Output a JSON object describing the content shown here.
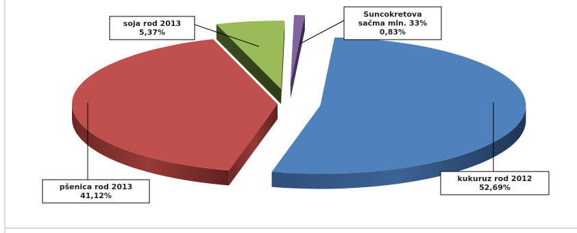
{
  "chart_data": {
    "type": "pie",
    "style": "3d-exploded",
    "slices": [
      {
        "label": "kukuruz rod 2012",
        "value": 52.69,
        "value_label": "52,69%",
        "color": "#4f81bd"
      },
      {
        "label": "pšenica rod 2013",
        "value": 41.12,
        "value_label": "41,12%",
        "color": "#c0504d"
      },
      {
        "label": "soja rod 2013",
        "value": 5.37,
        "value_label": "5,37%",
        "color": "#9bbb59"
      },
      {
        "label_lines": [
          "Suncokretova",
          "sačma mln. 33%"
        ],
        "value": 0.83,
        "value_label": "0,83%",
        "color": "#8064a2"
      }
    ],
    "legend": "none"
  }
}
